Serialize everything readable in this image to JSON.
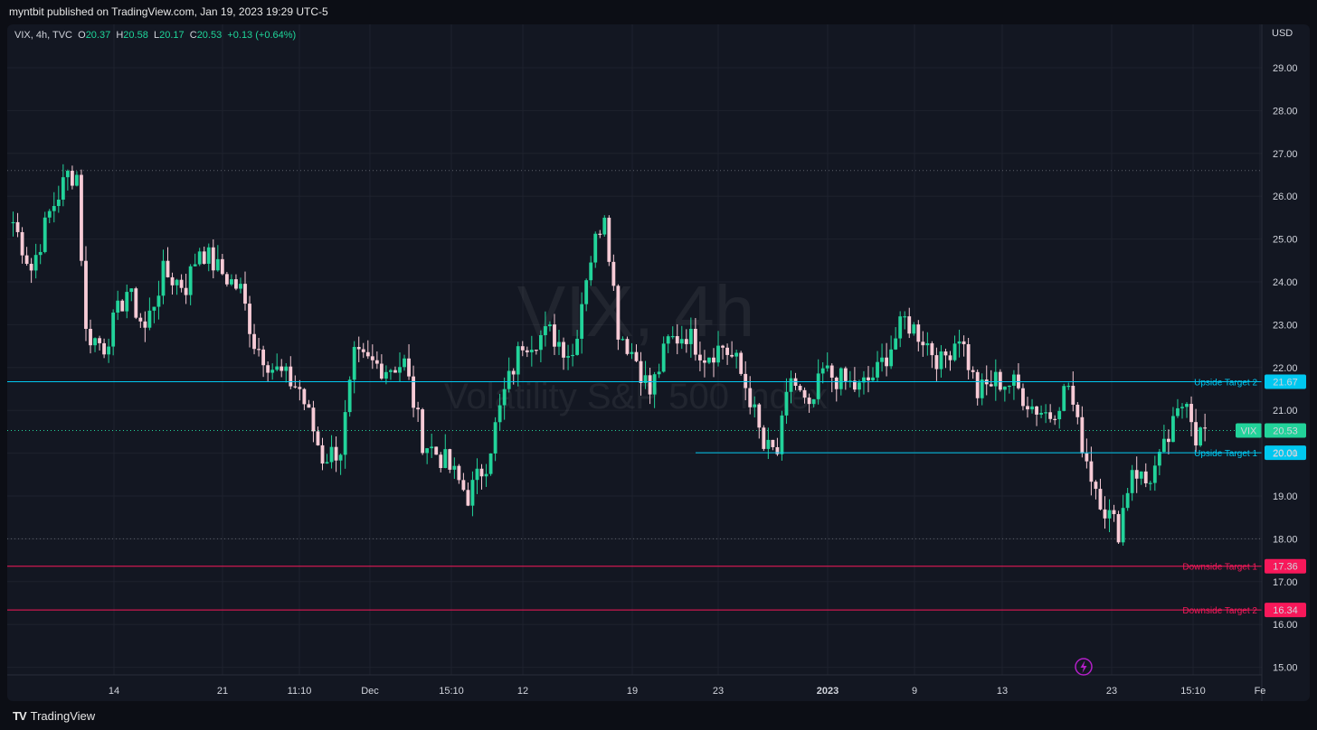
{
  "header": {
    "text": "myntbit published on TradingView.com, Jan 19, 2023 19:29 UTC-5"
  },
  "legend": {
    "symbol": "VIX, 4h, TVC",
    "o_label": "O",
    "o_value": "20.37",
    "h_label": "H",
    "h_value": "20.58",
    "l_label": "L",
    "l_value": "20.17",
    "c_label": "C",
    "c_value": "20.53",
    "change": "+0.13 (+0.64%)"
  },
  "watermark": {
    "line1": "VIX, 4h",
    "line2": "Volatility S&P 500 Index"
  },
  "footer": {
    "brand": "TradingView"
  },
  "colors": {
    "background": "#131722",
    "up": "#22d39a",
    "down": "#f7cbd6",
    "cyan": "#00c8f0",
    "pink": "#f7185a",
    "grid": "#1e222d",
    "text": "#d1d4dc"
  },
  "chart_data": {
    "type": "candlestick",
    "currency": "USD",
    "ylim": [
      14.8,
      29.5
    ],
    "y_ticks": [
      "29.00",
      "28.00",
      "27.00",
      "26.00",
      "25.00",
      "24.00",
      "23.00",
      "22.00",
      "21.00",
      "20.00",
      "19.00",
      "18.00",
      "17.00",
      "16.00",
      "15.00"
    ],
    "x_tick_labels": [
      "14",
      "21",
      "11:10",
      "Dec",
      "15:10",
      "12",
      "19",
      "23",
      "2023",
      "9",
      "13",
      "23",
      "15:10",
      "Fe"
    ],
    "dotted_lines": [
      26.6,
      18.0,
      20.53
    ],
    "levels": [
      {
        "label": "Upside Target 2",
        "value": 21.67,
        "value_text": "21.67",
        "color": "#00c8f0"
      },
      {
        "label": "Upside Target 1",
        "value": 20.01,
        "value_text": "20.01",
        "color": "#00c8f0"
      },
      {
        "label": "Downside Target 1",
        "value": 17.36,
        "value_text": "17.36",
        "color": "#f7185a"
      },
      {
        "label": "Downside Target 2",
        "value": 16.34,
        "value_text": "16.34",
        "color": "#f7185a"
      }
    ],
    "last_price": {
      "symbol": "VIX",
      "value": 20.53,
      "value_text": "20.53"
    },
    "series_keypoints": [
      [
        0,
        25.4
      ],
      [
        4,
        24.3
      ],
      [
        8,
        25.6
      ],
      [
        12,
        26.5
      ],
      [
        14,
        26.5
      ],
      [
        16,
        22.8
      ],
      [
        20,
        22.5
      ],
      [
        25,
        23.8
      ],
      [
        29,
        22.9
      ],
      [
        33,
        24.2
      ],
      [
        38,
        23.9
      ],
      [
        41,
        24.8
      ],
      [
        45,
        24.3
      ],
      [
        50,
        23.8
      ],
      [
        53,
        22.6
      ],
      [
        57,
        22.0
      ],
      [
        63,
        21.5
      ],
      [
        68,
        19.9
      ],
      [
        72,
        20.1
      ],
      [
        75,
        22.2
      ],
      [
        82,
        22.0
      ],
      [
        86,
        22.1
      ],
      [
        90,
        20.3
      ],
      [
        95,
        19.8
      ],
      [
        100,
        19.0
      ],
      [
        104,
        19.8
      ],
      [
        108,
        21.4
      ],
      [
        112,
        22.6
      ],
      [
        118,
        22.8
      ],
      [
        123,
        22.3
      ],
      [
        126,
        24.2
      ],
      [
        130,
        25.7
      ],
      [
        133,
        22.9
      ],
      [
        137,
        22.2
      ],
      [
        140,
        21.4
      ],
      [
        144,
        22.6
      ],
      [
        148,
        22.8
      ],
      [
        152,
        22.3
      ],
      [
        156,
        22.5
      ],
      [
        159,
        22.1
      ],
      [
        162,
        21.3
      ],
      [
        165,
        20.1
      ],
      [
        168,
        20.0
      ],
      [
        171,
        21.8
      ],
      [
        175,
        20.9
      ],
      [
        178,
        21.9
      ],
      [
        182,
        21.7
      ],
      [
        186,
        21.5
      ],
      [
        190,
        21.9
      ],
      [
        196,
        23.1
      ],
      [
        200,
        22.7
      ],
      [
        204,
        22.1
      ],
      [
        208,
        22.8
      ],
      [
        212,
        21.4
      ],
      [
        216,
        21.7
      ],
      [
        220,
        21.6
      ],
      [
        224,
        21.1
      ],
      [
        228,
        20.9
      ],
      [
        232,
        21.6
      ],
      [
        234,
        20.6
      ],
      [
        237,
        19.5
      ],
      [
        240,
        18.7
      ],
      [
        243,
        18.2
      ],
      [
        246,
        19.7
      ],
      [
        249,
        19.3
      ],
      [
        252,
        19.8
      ],
      [
        255,
        20.6
      ],
      [
        258,
        21.4
      ],
      [
        260,
        20.4
      ],
      [
        262,
        20.53
      ]
    ]
  }
}
